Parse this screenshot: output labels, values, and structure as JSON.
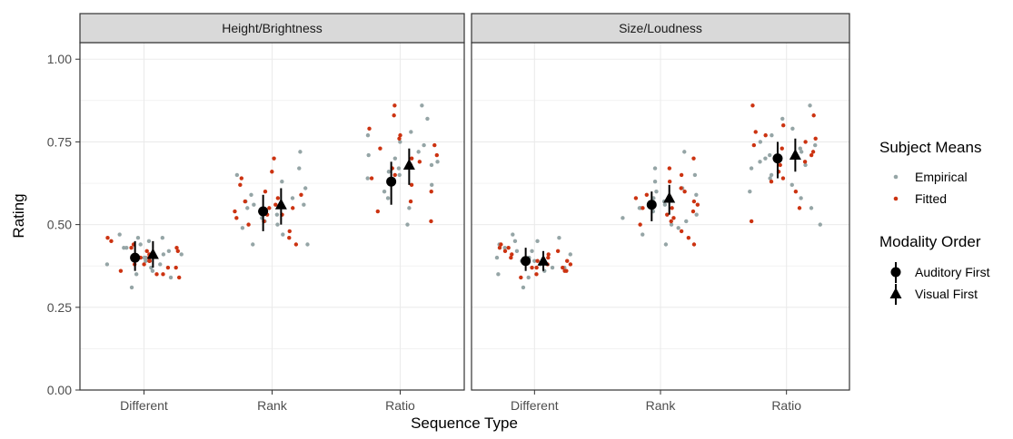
{
  "chart_data": {
    "type": "scatter",
    "ylabel": "Rating",
    "xlabel": "Sequence Type",
    "categories": [
      "Different",
      "Rank",
      "Ratio"
    ],
    "ylim": [
      0,
      1.05
    ],
    "yticks": [
      "0.00",
      "0.25",
      "0.50",
      "0.75",
      "1.00"
    ],
    "ytick_values": [
      0,
      0.25,
      0.5,
      0.75,
      1.0
    ],
    "grid": true,
    "legend_position": "right",
    "colors": {
      "empirical": "#95a5a6",
      "fitted": "#cc3311",
      "marker": "#000000",
      "strip_bg": "#d9d9d9",
      "grid": "#ebebeb"
    },
    "legend": {
      "subject_means": {
        "title": "Subject Means",
        "items": [
          "Empirical",
          "Fitted"
        ]
      },
      "modality_order": {
        "title": "Modality Order",
        "items": [
          "Auditory First",
          "Visual First"
        ]
      }
    },
    "panels": [
      {
        "title": "Height/Brightness",
        "summary": [
          {
            "category": "Different",
            "auditory": {
              "mean": 0.4,
              "lo": 0.36,
              "hi": 0.45
            },
            "visual": {
              "mean": 0.41,
              "lo": 0.37,
              "hi": 0.45
            }
          },
          {
            "category": "Rank",
            "auditory": {
              "mean": 0.54,
              "lo": 0.48,
              "hi": 0.59
            },
            "visual": {
              "mean": 0.56,
              "lo": 0.5,
              "hi": 0.61
            }
          },
          {
            "category": "Ratio",
            "auditory": {
              "mean": 0.63,
              "lo": 0.56,
              "hi": 0.69
            },
            "visual": {
              "mean": 0.68,
              "lo": 0.62,
              "hi": 0.73
            }
          }
        ],
        "points": {
          "empirical": [
            [
              0,
              0.47
            ],
            [
              0,
              0.46
            ],
            [
              0,
              0.45
            ],
            [
              0,
              0.44
            ],
            [
              0,
              0.43
            ],
            [
              0,
              0.42
            ],
            [
              0,
              0.41
            ],
            [
              0,
              0.4
            ],
            [
              0,
              0.4
            ],
            [
              0,
              0.39
            ],
            [
              0,
              0.38
            ],
            [
              0,
              0.37
            ],
            [
              0,
              0.36
            ],
            [
              0,
              0.35
            ],
            [
              0,
              0.34
            ],
            [
              0,
              0.31
            ],
            [
              0,
              0.46
            ],
            [
              0,
              0.43
            ],
            [
              0,
              0.41
            ],
            [
              0,
              0.38
            ],
            [
              1,
              0.72
            ],
            [
              1,
              0.67
            ],
            [
              1,
              0.65
            ],
            [
              1,
              0.63
            ],
            [
              1,
              0.61
            ],
            [
              1,
              0.59
            ],
            [
              1,
              0.58
            ],
            [
              1,
              0.57
            ],
            [
              1,
              0.56
            ],
            [
              1,
              0.55
            ],
            [
              1,
              0.54
            ],
            [
              1,
              0.53
            ],
            [
              1,
              0.52
            ],
            [
              1,
              0.51
            ],
            [
              1,
              0.5
            ],
            [
              1,
              0.49
            ],
            [
              1,
              0.47
            ],
            [
              1,
              0.44
            ],
            [
              1,
              0.44
            ],
            [
              1,
              0.56
            ],
            [
              2,
              0.86
            ],
            [
              2,
              0.82
            ],
            [
              2,
              0.78
            ],
            [
              2,
              0.77
            ],
            [
              2,
              0.75
            ],
            [
              2,
              0.74
            ],
            [
              2,
              0.72
            ],
            [
              2,
              0.71
            ],
            [
              2,
              0.7
            ],
            [
              2,
              0.69
            ],
            [
              2,
              0.68
            ],
            [
              2,
              0.67
            ],
            [
              2,
              0.66
            ],
            [
              2,
              0.65
            ],
            [
              2,
              0.64
            ],
            [
              2,
              0.62
            ],
            [
              2,
              0.6
            ],
            [
              2,
              0.58
            ],
            [
              2,
              0.55
            ],
            [
              2,
              0.5
            ]
          ],
          "fitted": [
            [
              0,
              0.46
            ],
            [
              0,
              0.45
            ],
            [
              0,
              0.44
            ],
            [
              0,
              0.43
            ],
            [
              0,
              0.42
            ],
            [
              0,
              0.42
            ],
            [
              0,
              0.41
            ],
            [
              0,
              0.4
            ],
            [
              0,
              0.39
            ],
            [
              0,
              0.39
            ],
            [
              0,
              0.38
            ],
            [
              0,
              0.37
            ],
            [
              0,
              0.37
            ],
            [
              0,
              0.36
            ],
            [
              0,
              0.35
            ],
            [
              0,
              0.35
            ],
            [
              0,
              0.34
            ],
            [
              0,
              0.4
            ],
            [
              0,
              0.43
            ],
            [
              0,
              0.38
            ],
            [
              1,
              0.7
            ],
            [
              1,
              0.66
            ],
            [
              1,
              0.64
            ],
            [
              1,
              0.62
            ],
            [
              1,
              0.6
            ],
            [
              1,
              0.59
            ],
            [
              1,
              0.58
            ],
            [
              1,
              0.57
            ],
            [
              1,
              0.56
            ],
            [
              1,
              0.55
            ],
            [
              1,
              0.54
            ],
            [
              1,
              0.53
            ],
            [
              1,
              0.52
            ],
            [
              1,
              0.51
            ],
            [
              1,
              0.5
            ],
            [
              1,
              0.48
            ],
            [
              1,
              0.46
            ],
            [
              1,
              0.44
            ],
            [
              1,
              0.55
            ],
            [
              1,
              0.53
            ],
            [
              2,
              0.86
            ],
            [
              2,
              0.83
            ],
            [
              2,
              0.79
            ],
            [
              2,
              0.77
            ],
            [
              2,
              0.76
            ],
            [
              2,
              0.74
            ],
            [
              2,
              0.73
            ],
            [
              2,
              0.71
            ],
            [
              2,
              0.7
            ],
            [
              2,
              0.69
            ],
            [
              2,
              0.68
            ],
            [
              2,
              0.67
            ],
            [
              2,
              0.65
            ],
            [
              2,
              0.64
            ],
            [
              2,
              0.63
            ],
            [
              2,
              0.62
            ],
            [
              2,
              0.6
            ],
            [
              2,
              0.57
            ],
            [
              2,
              0.54
            ],
            [
              2,
              0.51
            ]
          ]
        }
      },
      {
        "title": "Size/Loudness",
        "summary": [
          {
            "category": "Different",
            "auditory": {
              "mean": 0.39,
              "lo": 0.36,
              "hi": 0.43
            },
            "visual": {
              "mean": 0.39,
              "lo": 0.36,
              "hi": 0.42
            }
          },
          {
            "category": "Rank",
            "auditory": {
              "mean": 0.56,
              "lo": 0.51,
              "hi": 0.6
            },
            "visual": {
              "mean": 0.58,
              "lo": 0.53,
              "hi": 0.62
            }
          },
          {
            "category": "Ratio",
            "auditory": {
              "mean": 0.7,
              "lo": 0.64,
              "hi": 0.75
            },
            "visual": {
              "mean": 0.71,
              "lo": 0.66,
              "hi": 0.76
            }
          }
        ],
        "points": {
          "empirical": [
            [
              0,
              0.47
            ],
            [
              0,
              0.46
            ],
            [
              0,
              0.45
            ],
            [
              0,
              0.44
            ],
            [
              0,
              0.43
            ],
            [
              0,
              0.42
            ],
            [
              0,
              0.41
            ],
            [
              0,
              0.4
            ],
            [
              0,
              0.4
            ],
            [
              0,
              0.39
            ],
            [
              0,
              0.38
            ],
            [
              0,
              0.37
            ],
            [
              0,
              0.36
            ],
            [
              0,
              0.35
            ],
            [
              0,
              0.34
            ],
            [
              0,
              0.31
            ],
            [
              0,
              0.45
            ],
            [
              0,
              0.42
            ],
            [
              0,
              0.39
            ],
            [
              0,
              0.37
            ],
            [
              1,
              0.72
            ],
            [
              1,
              0.67
            ],
            [
              1,
              0.65
            ],
            [
              1,
              0.63
            ],
            [
              1,
              0.61
            ],
            [
              1,
              0.6
            ],
            [
              1,
              0.59
            ],
            [
              1,
              0.58
            ],
            [
              1,
              0.57
            ],
            [
              1,
              0.56
            ],
            [
              1,
              0.55
            ],
            [
              1,
              0.54
            ],
            [
              1,
              0.53
            ],
            [
              1,
              0.52
            ],
            [
              1,
              0.51
            ],
            [
              1,
              0.5
            ],
            [
              1,
              0.49
            ],
            [
              1,
              0.47
            ],
            [
              1,
              0.44
            ],
            [
              1,
              0.55
            ],
            [
              2,
              0.86
            ],
            [
              2,
              0.82
            ],
            [
              2,
              0.79
            ],
            [
              2,
              0.77
            ],
            [
              2,
              0.75
            ],
            [
              2,
              0.74
            ],
            [
              2,
              0.73
            ],
            [
              2,
              0.72
            ],
            [
              2,
              0.71
            ],
            [
              2,
              0.7
            ],
            [
              2,
              0.69
            ],
            [
              2,
              0.68
            ],
            [
              2,
              0.67
            ],
            [
              2,
              0.65
            ],
            [
              2,
              0.64
            ],
            [
              2,
              0.62
            ],
            [
              2,
              0.6
            ],
            [
              2,
              0.58
            ],
            [
              2,
              0.55
            ],
            [
              2,
              0.5
            ]
          ],
          "fitted": [
            [
              0,
              0.44
            ],
            [
              0,
              0.43
            ],
            [
              0,
              0.42
            ],
            [
              0,
              0.42
            ],
            [
              0,
              0.41
            ],
            [
              0,
              0.4
            ],
            [
              0,
              0.4
            ],
            [
              0,
              0.39
            ],
            [
              0,
              0.38
            ],
            [
              0,
              0.38
            ],
            [
              0,
              0.37
            ],
            [
              0,
              0.37
            ],
            [
              0,
              0.36
            ],
            [
              0,
              0.35
            ],
            [
              0,
              0.34
            ],
            [
              0,
              0.41
            ],
            [
              0,
              0.39
            ],
            [
              0,
              0.37
            ],
            [
              0,
              0.43
            ],
            [
              0,
              0.36
            ],
            [
              1,
              0.7
            ],
            [
              1,
              0.67
            ],
            [
              1,
              0.65
            ],
            [
              1,
              0.63
            ],
            [
              1,
              0.61
            ],
            [
              1,
              0.6
            ],
            [
              1,
              0.59
            ],
            [
              1,
              0.58
            ],
            [
              1,
              0.57
            ],
            [
              1,
              0.56
            ],
            [
              1,
              0.55
            ],
            [
              1,
              0.54
            ],
            [
              1,
              0.53
            ],
            [
              1,
              0.52
            ],
            [
              1,
              0.51
            ],
            [
              1,
              0.5
            ],
            [
              1,
              0.48
            ],
            [
              1,
              0.46
            ],
            [
              1,
              0.44
            ],
            [
              1,
              0.55
            ],
            [
              2,
              0.86
            ],
            [
              2,
              0.83
            ],
            [
              2,
              0.8
            ],
            [
              2,
              0.78
            ],
            [
              2,
              0.77
            ],
            [
              2,
              0.76
            ],
            [
              2,
              0.75
            ],
            [
              2,
              0.74
            ],
            [
              2,
              0.73
            ],
            [
              2,
              0.72
            ],
            [
              2,
              0.71
            ],
            [
              2,
              0.7
            ],
            [
              2,
              0.69
            ],
            [
              2,
              0.68
            ],
            [
              2,
              0.66
            ],
            [
              2,
              0.64
            ],
            [
              2,
              0.63
            ],
            [
              2,
              0.6
            ],
            [
              2,
              0.55
            ],
            [
              2,
              0.51
            ]
          ]
        }
      }
    ]
  }
}
